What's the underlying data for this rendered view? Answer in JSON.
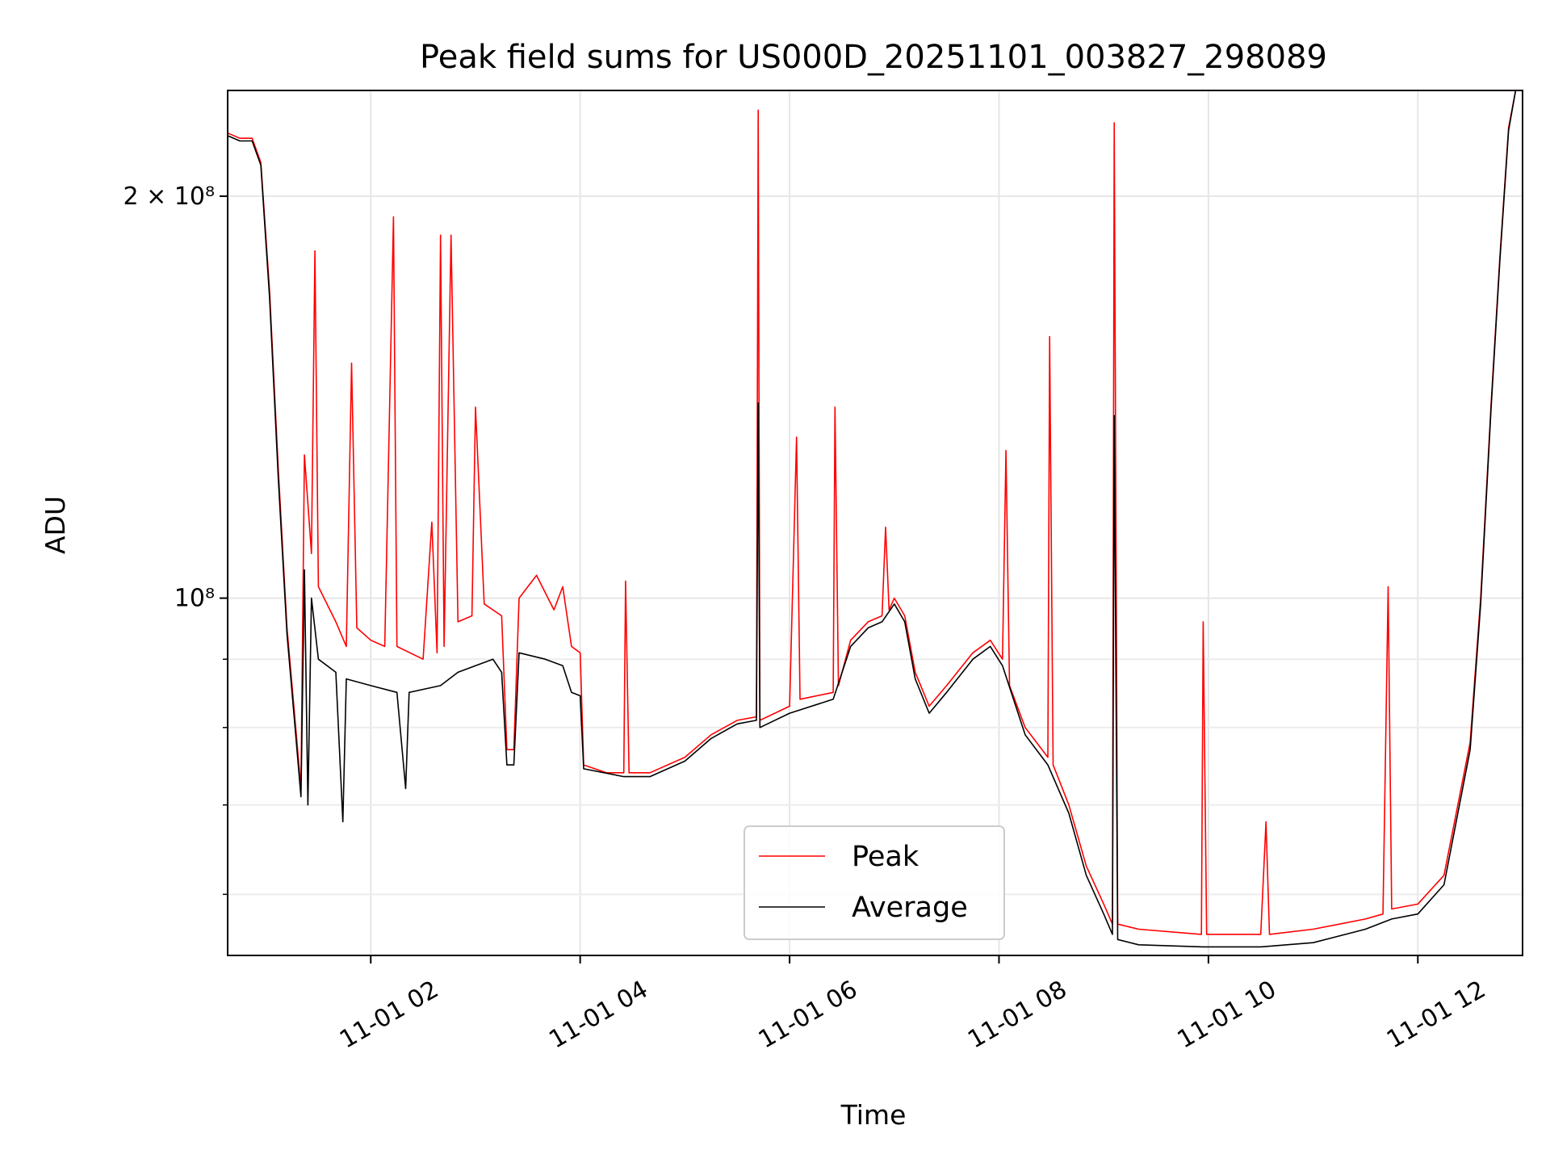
{
  "chart_data": {
    "type": "line",
    "title": "Peak field sums for US000D_20251101_003827_298089",
    "xlabel": "Time",
    "ylabel": "ADU",
    "x_ticks": [
      "11-01 02",
      "11-01 04",
      "11-01 06",
      "11-01 08",
      "11-01 10",
      "11-01 12"
    ],
    "y_tick_labels": {
      "major_2e8": "2 × 10⁸",
      "major_1e8": "10⁸"
    },
    "xlim": [
      "2025-11-01T00:38",
      "2025-11-01T13:00"
    ],
    "ylim": [
      54000000,
      240000000
    ],
    "y_scale": "log",
    "grid": true,
    "legend_position": "lower-center",
    "series": [
      {
        "name": "Peak",
        "color": "#ff0000",
        "points": [
          [
            "2025-11-01T00:38",
            223000000
          ],
          [
            "2025-11-01T00:45",
            221000000
          ],
          [
            "2025-11-01T00:52",
            221000000
          ],
          [
            "2025-11-01T00:57",
            212000000
          ],
          [
            "2025-11-01T01:02",
            170000000
          ],
          [
            "2025-11-01T01:07",
            125000000
          ],
          [
            "2025-11-01T01:12",
            95000000
          ],
          [
            "2025-11-01T01:17",
            80000000
          ],
          [
            "2025-11-01T01:20",
            72000000
          ],
          [
            "2025-11-01T01:22",
            128000000
          ],
          [
            "2025-11-01T01:26",
            108000000
          ],
          [
            "2025-11-01T01:28",
            182000000
          ],
          [
            "2025-11-01T01:30",
            102000000
          ],
          [
            "2025-11-01T01:40",
            96000000
          ],
          [
            "2025-11-01T01:46",
            92000000
          ],
          [
            "2025-11-01T01:49",
            150000000
          ],
          [
            "2025-11-01T01:52",
            95000000
          ],
          [
            "2025-11-01T02:00",
            93000000
          ],
          [
            "2025-11-01T02:08",
            92000000
          ],
          [
            "2025-11-01T02:13",
            193000000
          ],
          [
            "2025-11-01T02:15",
            92000000
          ],
          [
            "2025-11-01T02:30",
            90000000
          ],
          [
            "2025-11-01T02:35",
            114000000
          ],
          [
            "2025-11-01T02:38",
            91000000
          ],
          [
            "2025-11-01T02:40",
            187000000
          ],
          [
            "2025-11-01T02:42",
            92000000
          ],
          [
            "2025-11-01T02:46",
            187000000
          ],
          [
            "2025-11-01T02:50",
            96000000
          ],
          [
            "2025-11-01T02:58",
            97000000
          ],
          [
            "2025-11-01T03:00",
            139000000
          ],
          [
            "2025-11-01T03:05",
            99000000
          ],
          [
            "2025-11-01T03:15",
            97000000
          ],
          [
            "2025-11-01T03:18",
            77000000
          ],
          [
            "2025-11-01T03:22",
            77000000
          ],
          [
            "2025-11-01T03:25",
            100000000
          ],
          [
            "2025-11-01T03:35",
            104000000
          ],
          [
            "2025-11-01T03:45",
            98000000
          ],
          [
            "2025-11-01T03:50",
            102000000
          ],
          [
            "2025-11-01T03:55",
            92000000
          ],
          [
            "2025-11-01T04:00",
            91000000
          ],
          [
            "2025-11-01T04:02",
            75000000
          ],
          [
            "2025-11-01T04:15",
            74000000
          ],
          [
            "2025-11-01T04:25",
            74000000
          ],
          [
            "2025-11-01T04:26",
            103000000
          ],
          [
            "2025-11-01T04:28",
            74000000
          ],
          [
            "2025-11-01T04:40",
            74000000
          ],
          [
            "2025-11-01T05:00",
            76000000
          ],
          [
            "2025-11-01T05:15",
            79000000
          ],
          [
            "2025-11-01T05:30",
            81000000
          ],
          [
            "2025-11-01T05:41",
            81500000
          ],
          [
            "2025-11-01T05:42",
            232000000
          ],
          [
            "2025-11-01T05:43",
            81000000
          ],
          [
            "2025-11-01T06:00",
            83000000
          ],
          [
            "2025-11-01T06:04",
            132000000
          ],
          [
            "2025-11-01T06:06",
            84000000
          ],
          [
            "2025-11-01T06:25",
            85000000
          ],
          [
            "2025-11-01T06:26",
            139000000
          ],
          [
            "2025-11-01T06:28",
            86000000
          ],
          [
            "2025-11-01T06:35",
            93000000
          ],
          [
            "2025-11-01T06:45",
            96000000
          ],
          [
            "2025-11-01T06:53",
            97000000
          ],
          [
            "2025-11-01T06:55",
            113000000
          ],
          [
            "2025-11-01T06:57",
            98000000
          ],
          [
            "2025-11-01T07:00",
            100000000
          ],
          [
            "2025-11-01T07:06",
            97000000
          ],
          [
            "2025-11-01T07:12",
            88000000
          ],
          [
            "2025-11-01T07:20",
            83000000
          ],
          [
            "2025-11-01T07:30",
            86000000
          ],
          [
            "2025-11-01T07:45",
            91000000
          ],
          [
            "2025-11-01T07:55",
            93000000
          ],
          [
            "2025-11-01T08:02",
            90000000
          ],
          [
            "2025-11-01T08:04",
            129000000
          ],
          [
            "2025-11-01T08:06",
            86000000
          ],
          [
            "2025-11-01T08:15",
            80000000
          ],
          [
            "2025-11-01T08:28",
            76000000
          ],
          [
            "2025-11-01T08:29",
            157000000
          ],
          [
            "2025-11-01T08:31",
            75000000
          ],
          [
            "2025-11-01T08:40",
            70000000
          ],
          [
            "2025-11-01T08:50",
            63000000
          ],
          [
            "2025-11-01T09:00",
            59000000
          ],
          [
            "2025-11-01T09:05",
            57000000
          ],
          [
            "2025-11-01T09:06",
            227000000
          ],
          [
            "2025-11-01T09:08",
            57000000
          ],
          [
            "2025-11-01T09:20",
            56500000
          ],
          [
            "2025-11-01T09:56",
            56000000
          ],
          [
            "2025-11-01T09:57",
            96000000
          ],
          [
            "2025-11-01T09:59",
            56000000
          ],
          [
            "2025-11-01T10:30",
            56000000
          ],
          [
            "2025-11-01T10:33",
            68000000
          ],
          [
            "2025-11-01T10:35",
            56000000
          ],
          [
            "2025-11-01T11:00",
            56500000
          ],
          [
            "2025-11-01T11:30",
            57500000
          ],
          [
            "2025-11-01T11:40",
            58000000
          ],
          [
            "2025-11-01T11:43",
            102000000
          ],
          [
            "2025-11-01T11:45",
            58500000
          ],
          [
            "2025-11-01T12:00",
            59000000
          ],
          [
            "2025-11-01T12:15",
            62000000
          ],
          [
            "2025-11-01T12:30",
            78000000
          ],
          [
            "2025-11-01T12:36",
            100000000
          ],
          [
            "2025-11-01T12:42",
            140000000
          ],
          [
            "2025-11-01T12:47",
            180000000
          ],
          [
            "2025-11-01T12:52",
            225000000
          ],
          [
            "2025-11-01T12:56",
            240000000
          ],
          [
            "2025-11-01T13:00",
            240000000
          ]
        ]
      },
      {
        "name": "Average",
        "color": "#000000",
        "points": [
          [
            "2025-11-01T00:38",
            222000000
          ],
          [
            "2025-11-01T00:45",
            220000000
          ],
          [
            "2025-11-01T00:52",
            220000000
          ],
          [
            "2025-11-01T00:57",
            211000000
          ],
          [
            "2025-11-01T01:02",
            168000000
          ],
          [
            "2025-11-01T01:07",
            123000000
          ],
          [
            "2025-11-01T01:12",
            94000000
          ],
          [
            "2025-11-01T01:17",
            79000000
          ],
          [
            "2025-11-01T01:20",
            71000000
          ],
          [
            "2025-11-01T01:22",
            105000000
          ],
          [
            "2025-11-01T01:24",
            70000000
          ],
          [
            "2025-11-01T01:26",
            100000000
          ],
          [
            "2025-11-01T01:30",
            90000000
          ],
          [
            "2025-11-01T01:40",
            88000000
          ],
          [
            "2025-11-01T01:44",
            68000000
          ],
          [
            "2025-11-01T01:46",
            87000000
          ],
          [
            "2025-11-01T02:00",
            86000000
          ],
          [
            "2025-11-01T02:15",
            85000000
          ],
          [
            "2025-11-01T02:20",
            72000000
          ],
          [
            "2025-11-01T02:22",
            85000000
          ],
          [
            "2025-11-01T02:40",
            86000000
          ],
          [
            "2025-11-01T02:50",
            88000000
          ],
          [
            "2025-11-01T03:00",
            89000000
          ],
          [
            "2025-11-01T03:10",
            90000000
          ],
          [
            "2025-11-01T03:15",
            88000000
          ],
          [
            "2025-11-01T03:18",
            75000000
          ],
          [
            "2025-11-01T03:22",
            75000000
          ],
          [
            "2025-11-01T03:25",
            91000000
          ],
          [
            "2025-11-01T03:40",
            90000000
          ],
          [
            "2025-11-01T03:50",
            89000000
          ],
          [
            "2025-11-01T03:55",
            85000000
          ],
          [
            "2025-11-01T04:00",
            84500000
          ],
          [
            "2025-11-01T04:02",
            74500000
          ],
          [
            "2025-11-01T04:25",
            73500000
          ],
          [
            "2025-11-01T04:40",
            73500000
          ],
          [
            "2025-11-01T05:00",
            75500000
          ],
          [
            "2025-11-01T05:15",
            78500000
          ],
          [
            "2025-11-01T05:30",
            80500000
          ],
          [
            "2025-11-01T05:41",
            81000000
          ],
          [
            "2025-11-01T05:42",
            140000000
          ],
          [
            "2025-11-01T05:43",
            80000000
          ],
          [
            "2025-11-01T06:00",
            82000000
          ],
          [
            "2025-11-01T06:25",
            84000000
          ],
          [
            "2025-11-01T06:35",
            92000000
          ],
          [
            "2025-11-01T06:45",
            95000000
          ],
          [
            "2025-11-01T06:53",
            96000000
          ],
          [
            "2025-11-01T07:00",
            99000000
          ],
          [
            "2025-11-01T07:06",
            96000000
          ],
          [
            "2025-11-01T07:12",
            87000000
          ],
          [
            "2025-11-01T07:20",
            82000000
          ],
          [
            "2025-11-01T07:30",
            85000000
          ],
          [
            "2025-11-01T07:45",
            90000000
          ],
          [
            "2025-11-01T07:55",
            92000000
          ],
          [
            "2025-11-01T08:02",
            89000000
          ],
          [
            "2025-11-01T08:15",
            79000000
          ],
          [
            "2025-11-01T08:28",
            75000000
          ],
          [
            "2025-11-01T08:40",
            69000000
          ],
          [
            "2025-11-01T08:50",
            62000000
          ],
          [
            "2025-11-01T09:00",
            58000000
          ],
          [
            "2025-11-01T09:05",
            56000000
          ],
          [
            "2025-11-01T09:06",
            137000000
          ],
          [
            "2025-11-01T09:08",
            55500000
          ],
          [
            "2025-11-01T09:20",
            55000000
          ],
          [
            "2025-11-01T09:57",
            54800000
          ],
          [
            "2025-11-01T10:30",
            54800000
          ],
          [
            "2025-11-01T11:00",
            55200000
          ],
          [
            "2025-11-01T11:30",
            56500000
          ],
          [
            "2025-11-01T11:45",
            57500000
          ],
          [
            "2025-11-01T12:00",
            58000000
          ],
          [
            "2025-11-01T12:15",
            61000000
          ],
          [
            "2025-11-01T12:30",
            77000000
          ],
          [
            "2025-11-01T12:36",
            99000000
          ],
          [
            "2025-11-01T12:42",
            139000000
          ],
          [
            "2025-11-01T12:47",
            179000000
          ],
          [
            "2025-11-01T12:52",
            224000000
          ],
          [
            "2025-11-01T12:56",
            240000000
          ],
          [
            "2025-11-01T13:00",
            240000000
          ]
        ]
      }
    ]
  }
}
